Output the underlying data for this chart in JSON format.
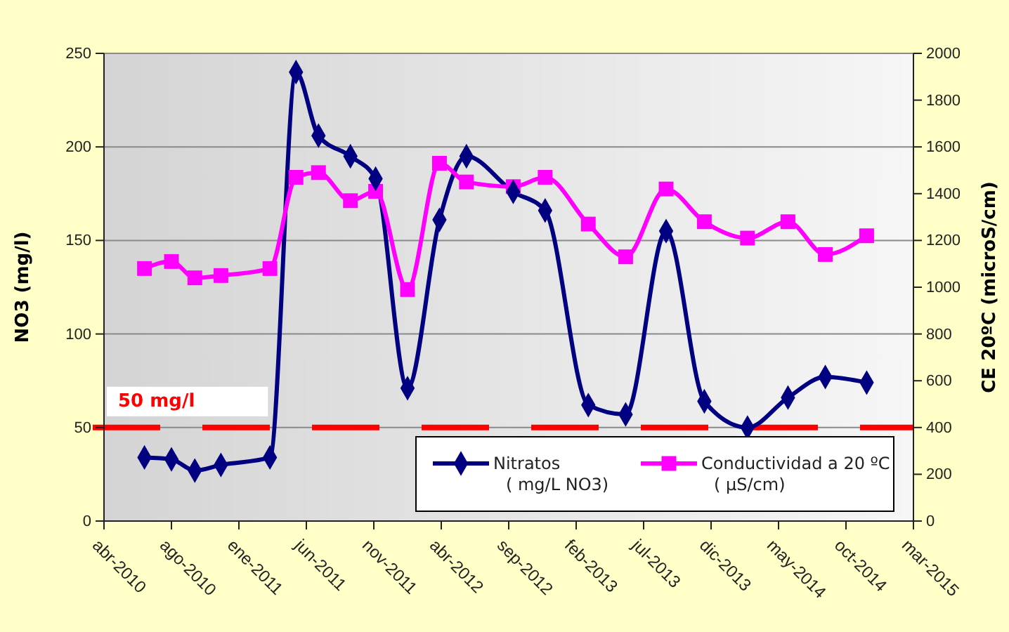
{
  "chart_data": {
    "type": "line",
    "ylabel": "NO3 (mg/l)",
    "y2label": "CE 20ºC (microS/cm)",
    "x": [
      "2010-06-30",
      "2010-08-29",
      "2010-10-20",
      "2010-12-17",
      "2011-04-05",
      "2011-06-02",
      "2011-07-22",
      "2011-10-01",
      "2011-11-26",
      "2012-02-05",
      "2012-04-16",
      "2012-06-15",
      "2012-09-27",
      "2012-12-07",
      "2013-03-13",
      "2013-06-04",
      "2013-09-02",
      "2013-11-26",
      "2014-03-02",
      "2014-05-31",
      "2014-08-22",
      "2014-11-22"
    ],
    "series": [
      {
        "name": "Nitratos ( mg/L NO3)",
        "color": "#000080",
        "marker": "diamond",
        "values": [
          34,
          33,
          27,
          30,
          34,
          240,
          206,
          195,
          183,
          71,
          161,
          195,
          176,
          166,
          62,
          57,
          155,
          64,
          50,
          66,
          77,
          74
        ]
      },
      {
        "name": "Conductividad a 20 ºC ( µS/cm)",
        "color": "#ff00ff",
        "marker": "square",
        "axis": "y2",
        "values": [
          1080,
          1110,
          1040,
          1050,
          1080,
          1470,
          1490,
          1370,
          1410,
          990,
          1530,
          1450,
          1430,
          1470,
          1270,
          1130,
          1420,
          1280,
          1210,
          1280,
          1140,
          1220
        ]
      }
    ],
    "xlim": [
      "2010-04-01",
      "2015-03-06"
    ],
    "xticks": [
      {
        "value": "2010-04-01",
        "label": "abr-2010"
      },
      {
        "value": "2010-08-29",
        "label": "ago-2010"
      },
      {
        "value": "2011-01-26",
        "label": "ene-2011"
      },
      {
        "value": "2011-06-25",
        "label": "jun-2011"
      },
      {
        "value": "2011-11-22",
        "label": "nov-2011"
      },
      {
        "value": "2012-04-20",
        "label": "abr-2012"
      },
      {
        "value": "2012-09-17",
        "label": "sep-2012"
      },
      {
        "value": "2013-02-14",
        "label": "feb-2013"
      },
      {
        "value": "2013-07-14",
        "label": "jul-2013"
      },
      {
        "value": "2013-12-11",
        "label": "dic-2013"
      },
      {
        "value": "2014-05-10",
        "label": "may-2014"
      },
      {
        "value": "2014-10-07",
        "label": "oct-2014"
      },
      {
        "value": "2015-03-06",
        "label": "mar-2015"
      }
    ],
    "ylim": [
      0,
      250
    ],
    "yticks": [
      0,
      50,
      100,
      150,
      200,
      250
    ],
    "y2lim": [
      0,
      2000
    ],
    "y2ticks": [
      0,
      200,
      400,
      600,
      800,
      1000,
      1200,
      1400,
      1600,
      1800,
      2000
    ],
    "ref_lines": [
      {
        "axis": "y",
        "value": 50,
        "label": "50 mg/l",
        "color": "#ff0000",
        "line_style": "dashed"
      }
    ],
    "grid": "y",
    "legend": "bottom right"
  }
}
